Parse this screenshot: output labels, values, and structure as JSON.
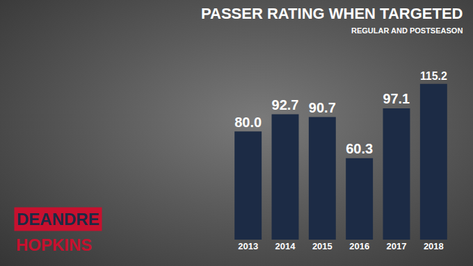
{
  "chart_data": {
    "type": "bar",
    "title": "PASSER RATING WHEN TARGETED",
    "subtitle": "REGULAR AND POSTSEASON",
    "annotations": [
      "DEANDRE",
      "HOPKINS"
    ],
    "categories": [
      "2013",
      "2014",
      "2015",
      "2016",
      "2017",
      "2018"
    ],
    "values": [
      80.0,
      92.7,
      90.7,
      60.3,
      97.1,
      115.2
    ],
    "value_labels": [
      "80.0",
      "92.7",
      "90.7",
      "60.3",
      "97.1",
      "115.2"
    ],
    "color": "#1c2b45",
    "ylim": [
      0,
      130
    ],
    "grid": false,
    "data_labels": true,
    "tick_labels": "x"
  }
}
